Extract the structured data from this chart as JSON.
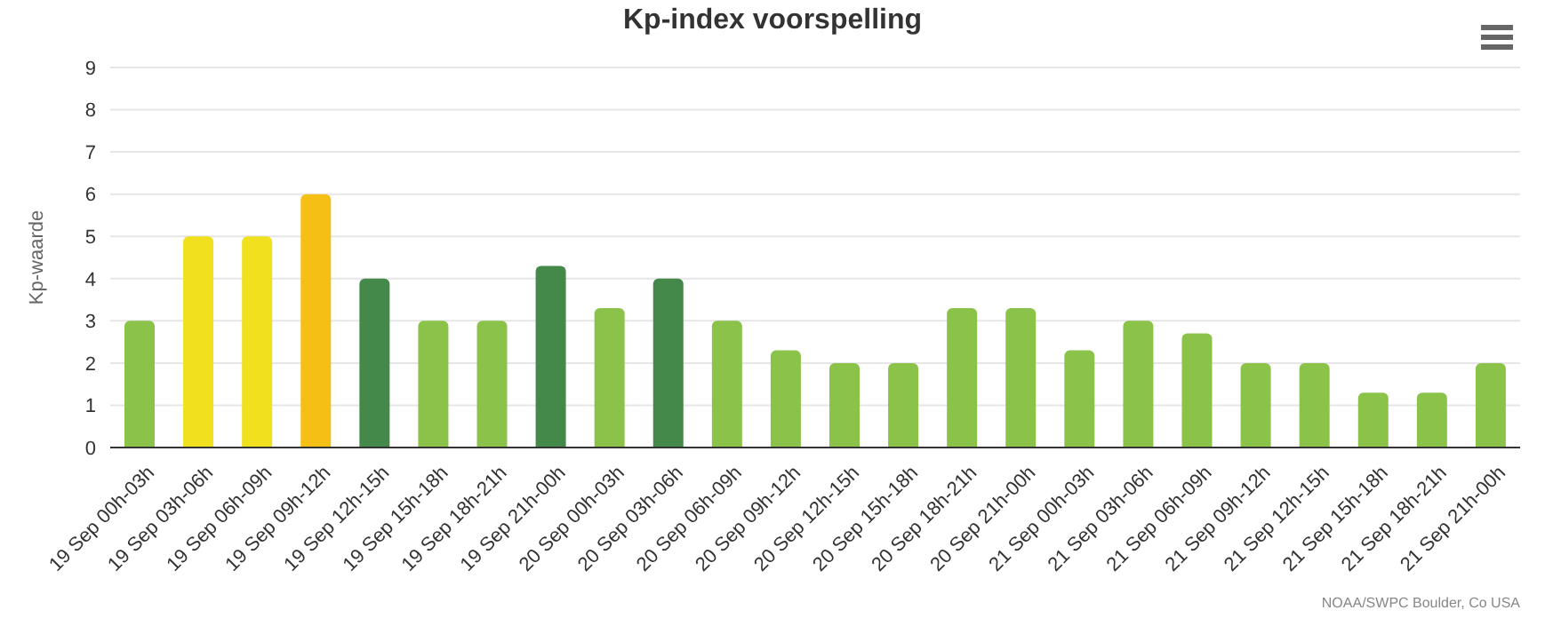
{
  "chart_data": {
    "type": "bar",
    "title": "Kp-index voorspelling",
    "ylabel": "Kp-waarde",
    "categories": [
      "19 Sep 00h-03h",
      "19 Sep 03h-06h",
      "19 Sep 06h-09h",
      "19 Sep 09h-12h",
      "19 Sep 12h-15h",
      "19 Sep 15h-18h",
      "19 Sep 18h-21h",
      "19 Sep 21h-00h",
      "20 Sep 00h-03h",
      "20 Sep 03h-06h",
      "20 Sep 06h-09h",
      "20 Sep 09h-12h",
      "20 Sep 12h-15h",
      "20 Sep 15h-18h",
      "20 Sep 18h-21h",
      "20 Sep 21h-00h",
      "21 Sep 00h-03h",
      "21 Sep 03h-06h",
      "21 Sep 06h-09h",
      "21 Sep 09h-12h",
      "21 Sep 12h-15h",
      "21 Sep 15h-18h",
      "21 Sep 18h-21h",
      "21 Sep 21h-00h"
    ],
    "values": [
      3,
      5,
      5,
      6,
      4,
      3,
      3,
      4.3,
      3.3,
      4,
      3,
      2.3,
      2,
      2,
      3.3,
      3.3,
      2.3,
      3,
      2.7,
      2,
      2,
      1.3,
      1.3,
      2
    ],
    "colors": [
      "#8bc34a",
      "#f0e01e",
      "#f0e01e",
      "#f5bf16",
      "#44894a",
      "#8bc34a",
      "#8bc34a",
      "#44894a",
      "#8bc34a",
      "#44894a",
      "#8bc34a",
      "#8bc34a",
      "#8bc34a",
      "#8bc34a",
      "#8bc34a",
      "#8bc34a",
      "#8bc34a",
      "#8bc34a",
      "#8bc34a",
      "#8bc34a",
      "#8bc34a",
      "#8bc34a",
      "#8bc34a",
      "#8bc34a"
    ],
    "ylim": [
      0,
      9
    ],
    "yticks": [
      0,
      1,
      2,
      3,
      4,
      5,
      6,
      7,
      8,
      9
    ],
    "grid": "y",
    "annotations": [
      "NOAA/SWPC Boulder, Co USA"
    ]
  }
}
